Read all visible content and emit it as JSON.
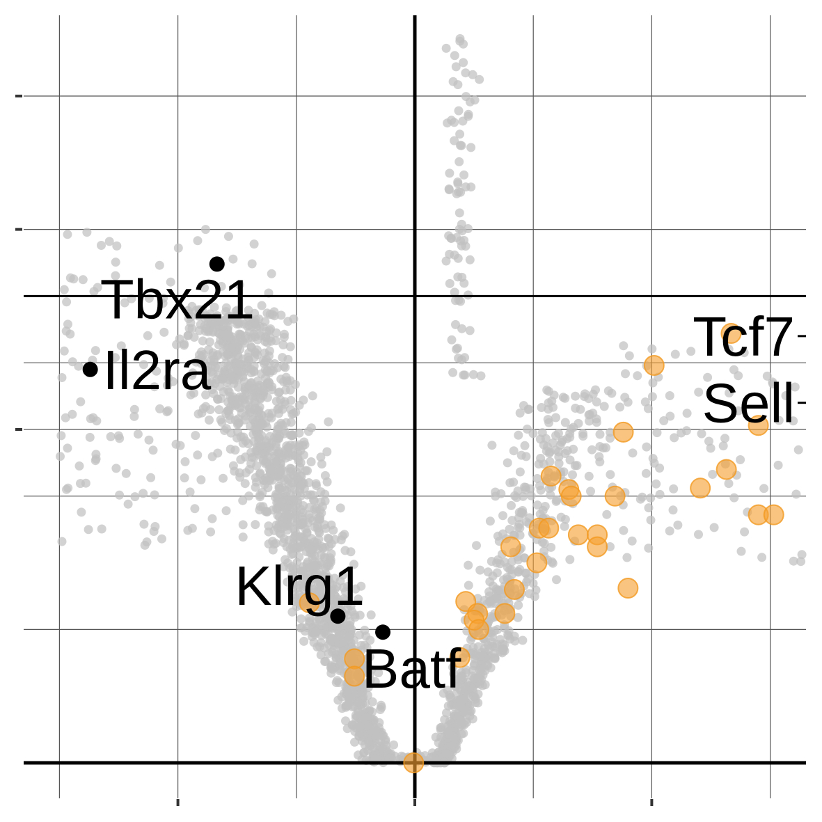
{
  "chart_data": {
    "type": "scatter",
    "title": "",
    "xlabel": "",
    "ylabel": "",
    "xlim": [
      -3.0,
      3.3
    ],
    "ylim": [
      -0.3,
      5.6
    ],
    "x_gridlines": [
      -3,
      -2,
      -1,
      0,
      1,
      2,
      3
    ],
    "y_gridlines": [
      0,
      1,
      2,
      2.5,
      3,
      4,
      5
    ],
    "reference_lines": {
      "x": 0,
      "y_low": 0,
      "y_high": 3.5
    },
    "colors": {
      "background_point": "#c0c0c0",
      "highlight_point": "#f6a030",
      "labeled_point": "#000000",
      "grid": "#555555",
      "reference_line": "#000000"
    },
    "background_points_shown": "approximately 2000 grey points forming a volcano shape",
    "highlighted_points": [
      {
        "x": 2.67,
        "y": 3.22
      },
      {
        "x": 2.02,
        "y": 2.98
      },
      {
        "x": 2.9,
        "y": 2.53
      },
      {
        "x": 1.76,
        "y": 2.48
      },
      {
        "x": 2.63,
        "y": 2.2
      },
      {
        "x": 1.15,
        "y": 2.15
      },
      {
        "x": 1.3,
        "y": 2.05
      },
      {
        "x": 1.32,
        "y": 2.0
      },
      {
        "x": 2.41,
        "y": 2.06
      },
      {
        "x": 1.69,
        "y": 2.0
      },
      {
        "x": 2.9,
        "y": 1.86
      },
      {
        "x": 3.03,
        "y": 1.86
      },
      {
        "x": 1.05,
        "y": 1.76
      },
      {
        "x": 1.13,
        "y": 1.76
      },
      {
        "x": 1.38,
        "y": 1.71
      },
      {
        "x": 1.54,
        "y": 1.71
      },
      {
        "x": 0.81,
        "y": 1.62
      },
      {
        "x": 1.54,
        "y": 1.62
      },
      {
        "x": 1.03,
        "y": 1.5
      },
      {
        "x": 0.84,
        "y": 1.3
      },
      {
        "x": 1.8,
        "y": 1.31
      },
      {
        "x": 0.43,
        "y": 1.21
      },
      {
        "x": -0.89,
        "y": 1.2
      },
      {
        "x": 0.53,
        "y": 1.12
      },
      {
        "x": 0.76,
        "y": 1.12
      },
      {
        "x": 0.5,
        "y": 1.07
      },
      {
        "x": 0.54,
        "y": 1.0
      },
      {
        "x": -0.51,
        "y": 0.78
      },
      {
        "x": 0.38,
        "y": 0.79
      },
      {
        "x": -0.51,
        "y": 0.65
      },
      {
        "x": -0.01,
        "y": 0.0
      }
    ],
    "labeled_points": [
      {
        "label": "Tbx21",
        "x": -1.67,
        "y": 3.74
      },
      {
        "label": "Il2ra",
        "x": -2.74,
        "y": 2.95
      },
      {
        "label": "Klrg1",
        "x": -0.65,
        "y": 1.1
      },
      {
        "label": "Batf",
        "x": -0.27,
        "y": 0.98
      },
      {
        "label": "Tcf7",
        "x": 3.3,
        "y": 3.2
      },
      {
        "label": "Sell",
        "x": 3.3,
        "y": 2.7
      }
    ]
  }
}
